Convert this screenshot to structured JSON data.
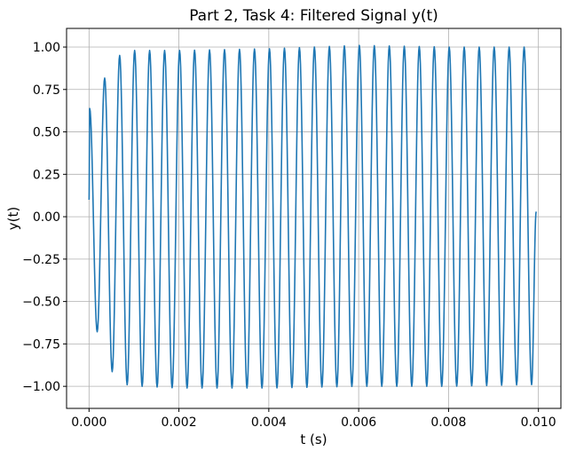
{
  "chart_data": {
    "type": "line",
    "title": "Part 2, Task 4: Filtered Signal y(t)",
    "xlabel": "t (s)",
    "ylabel": "y(t)",
    "xlim": [
      -0.0005,
      0.0105
    ],
    "ylim": [
      -1.13,
      1.11
    ],
    "xticks": [
      0.0,
      0.002,
      0.004,
      0.006,
      0.008,
      0.01
    ],
    "xtick_labels": [
      "0.000",
      "0.002",
      "0.004",
      "0.006",
      "0.008",
      "0.010"
    ],
    "yticks": [
      -1.0,
      -0.75,
      -0.5,
      -0.25,
      0.0,
      0.25,
      0.5,
      0.75,
      1.0
    ],
    "ytick_labels": [
      "−1.00",
      "−0.75",
      "−0.50",
      "−0.25",
      "0.00",
      "0.25",
      "0.50",
      "0.75",
      "1.00"
    ],
    "grid": true,
    "series": [
      {
        "color": "#1f77b4",
        "frequency_hz": 3000,
        "t_start": 0.0,
        "t_end": 0.00995,
        "y_start": 0.1,
        "steady_amplitude": 1.0,
        "peaks": [
          {
            "t": 0.0,
            "y": 0.63
          },
          {
            "t": 0.00033,
            "y": 0.81
          },
          {
            "t": 0.00067,
            "y": 0.95
          },
          {
            "t": 0.001,
            "y": 0.98
          },
          {
            "t": 0.002,
            "y": 0.98
          },
          {
            "t": 0.004,
            "y": 0.99
          },
          {
            "t": 0.006,
            "y": 1.01
          },
          {
            "t": 0.008,
            "y": 1.0
          },
          {
            "t": 0.0099,
            "y": 1.0
          }
        ],
        "troughs": [
          {
            "t": 0.00017,
            "y": -0.67
          },
          {
            "t": 0.0005,
            "y": -0.91
          },
          {
            "t": 0.00083,
            "y": -0.99
          },
          {
            "t": 0.00117,
            "y": -1.0
          },
          {
            "t": 0.002,
            "y": -1.01
          },
          {
            "t": 0.004,
            "y": -1.01
          },
          {
            "t": 0.006,
            "y": -1.0
          },
          {
            "t": 0.008,
            "y": -1.0
          },
          {
            "t": 0.00983,
            "y": -0.99
          }
        ],
        "y_end": 0.03
      }
    ]
  }
}
